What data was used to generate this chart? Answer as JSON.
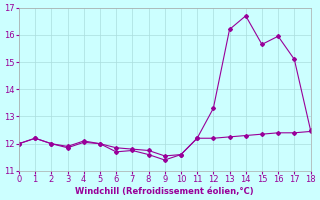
{
  "line1_x": [
    0,
    1,
    2,
    3,
    4,
    5,
    6,
    7,
    8,
    9,
    10,
    11,
    12,
    13,
    14,
    15,
    16,
    17,
    18
  ],
  "line1_y": [
    12.0,
    12.2,
    12.0,
    11.9,
    12.1,
    12.0,
    11.85,
    11.8,
    11.75,
    11.55,
    11.6,
    12.2,
    12.2,
    12.25,
    12.3,
    12.35,
    12.4,
    12.4,
    12.45
  ],
  "line2_x": [
    0,
    1,
    2,
    3,
    4,
    5,
    6,
    7,
    8,
    9,
    10,
    11,
    12,
    13,
    14,
    15,
    16,
    17,
    18
  ],
  "line2_y": [
    12.0,
    12.2,
    12.0,
    11.85,
    12.05,
    12.0,
    11.7,
    11.75,
    11.6,
    11.4,
    11.6,
    12.2,
    13.3,
    16.2,
    16.7,
    15.65,
    15.95,
    15.1,
    12.5
  ],
  "color": "#990099",
  "bg_color": "#ccffff",
  "grid_color": "#aadddd",
  "xlabel": "Windchill (Refroidissement éolien,°C)",
  "ylim": [
    11.0,
    17.0
  ],
  "xlim": [
    0,
    18
  ],
  "yticks": [
    11,
    12,
    13,
    14,
    15,
    16,
    17
  ],
  "xticks": [
    0,
    1,
    2,
    3,
    4,
    5,
    6,
    7,
    8,
    9,
    10,
    11,
    12,
    13,
    14,
    15,
    16,
    17,
    18
  ]
}
